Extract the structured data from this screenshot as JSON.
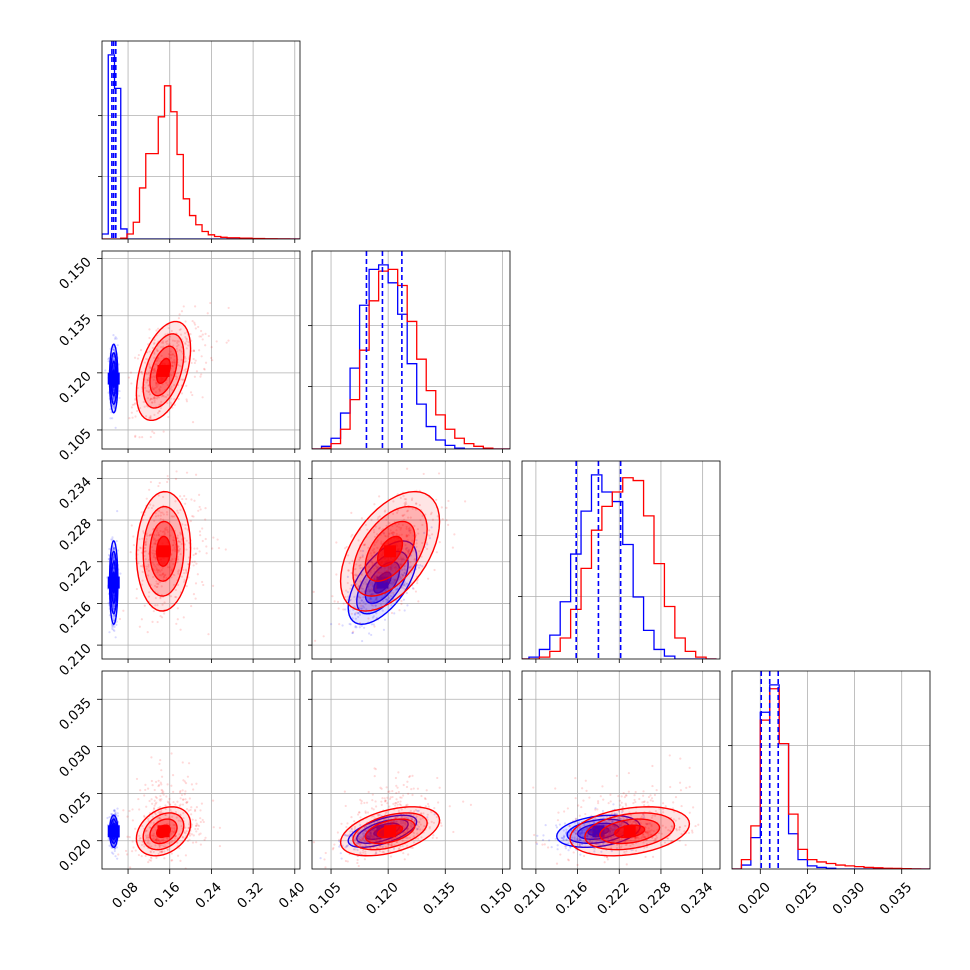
{
  "chart_data": {
    "type": "corner",
    "grid": true,
    "series": [
      {
        "name": "",
        "color": "#0000ff",
        "median": [
          0.0525,
          0.1185,
          0.219,
          0.021
        ],
        "quantile_16": [
          0.049,
          0.1143,
          0.2158,
          0.0201
        ],
        "quantile_84": [
          0.0565,
          0.1236,
          0.2222,
          0.0219
        ],
        "sd": [
          0.004,
          0.0045,
          0.003,
          0.00085
        ],
        "corr": [
          [
            1,
            0,
            0,
            0
          ],
          [
            0,
            1,
            0,
            0
          ],
          [
            0,
            0.6,
            1,
            0
          ],
          [
            0,
            0.6,
            0.3,
            1
          ]
        ]
      },
      {
        "name": "",
        "color": "#ff0000",
        "median": [
          0.148,
          0.1205,
          0.2235,
          0.021
        ],
        "quantile_16": [
          0.128,
          0.114,
          0.219,
          0.0202
        ],
        "quantile_84": [
          0.174,
          0.1265,
          0.228,
          0.0222
        ],
        "sd": [
          0.026,
          0.0065,
          0.0043,
          0.0013
        ],
        "corr": [
          [
            1,
            0,
            0,
            0
          ],
          [
            0.45,
            1,
            0,
            0
          ],
          [
            0.05,
            0.5,
            1,
            0
          ],
          [
            0.3,
            0.45,
            0.3,
            1
          ]
        ]
      }
    ],
    "vertical_lines_color": "#0000ff",
    "axes": [
      {
        "range": [
          0.03,
          0.41
        ],
        "ticks": [
          0.08,
          0.16,
          0.24,
          0.32,
          0.4
        ],
        "tick_labels": [
          "0.08",
          "0.16",
          "0.24",
          "0.32",
          "0.40"
        ]
      },
      {
        "range": [
          0.1,
          0.152
        ],
        "ticks": [
          0.105,
          0.12,
          0.135,
          0.15
        ],
        "tick_labels": [
          "0.105",
          "0.120",
          "0.135",
          "0.150"
        ]
      },
      {
        "range": [
          0.208,
          0.2365
        ],
        "ticks": [
          0.21,
          0.216,
          0.222,
          0.228,
          0.234
        ],
        "tick_labels": [
          "0.210",
          "0.216",
          "0.222",
          "0.228",
          "0.234"
        ]
      },
      {
        "range": [
          0.017,
          0.038
        ],
        "ticks": [
          0.02,
          0.025,
          0.03,
          0.035
        ],
        "tick_labels": [
          "0.020",
          "0.025",
          "0.030",
          "0.035"
        ]
      }
    ],
    "histograms": [
      {
        "bin_edges": [
          0.03,
          0.042,
          0.054,
          0.066,
          0.078,
          0.09,
          0.102,
          0.114,
          0.126,
          0.138,
          0.15,
          0.162,
          0.174,
          0.186,
          0.198,
          0.21,
          0.222,
          0.234,
          0.246,
          0.258,
          0.27,
          0.294,
          0.318,
          0.342,
          0.366,
          0.39,
          0.41
        ],
        "blue": [
          6,
          220,
          180,
          12,
          0,
          0,
          0,
          0,
          0,
          0,
          0,
          0,
          0,
          0,
          0,
          0,
          0,
          0,
          0,
          0,
          0,
          0,
          0,
          0,
          0,
          0
        ],
        "red": [
          0,
          0,
          0,
          1,
          6,
          20,
          61,
          102,
          102,
          146,
          183,
          152,
          101,
          48,
          28,
          17,
          9,
          5,
          3,
          2,
          1.5,
          1,
          0.5,
          0.3,
          0.1,
          0
        ]
      },
      {
        "bin_edges": [
          0.1,
          0.1025,
          0.105,
          0.1075,
          0.11,
          0.1125,
          0.115,
          0.1175,
          0.12,
          0.1225,
          0.125,
          0.1275,
          0.13,
          0.1325,
          0.135,
          0.1375,
          0.14,
          0.1425,
          0.145,
          0.1475,
          0.15,
          0.152
        ],
        "blue": [
          0,
          3,
          12,
          40,
          90,
          160,
          200,
          205,
          185,
          150,
          95,
          50,
          25,
          10,
          4,
          1,
          0,
          0,
          0,
          0,
          0
        ],
        "red": [
          0,
          1,
          6,
          22,
          55,
          110,
          165,
          198,
          200,
          182,
          142,
          100,
          65,
          38,
          22,
          12,
          6,
          3,
          1,
          0,
          0
        ]
      },
      {
        "bin_edges": [
          0.2075,
          0.209,
          0.2105,
          0.212,
          0.2135,
          0.215,
          0.2165,
          0.218,
          0.2195,
          0.221,
          0.2225,
          0.224,
          0.2255,
          0.227,
          0.2285,
          0.23,
          0.2315,
          0.233,
          0.2345,
          0.236
        ],
        "blue": [
          0,
          2,
          10,
          25,
          60,
          110,
          155,
          193,
          175,
          165,
          120,
          65,
          30,
          10,
          3,
          0,
          0,
          0,
          0
        ],
        "red": [
          0,
          0,
          2,
          8,
          22,
          52,
          95,
          135,
          160,
          175,
          190,
          187,
          150,
          100,
          55,
          22,
          8,
          2,
          0
        ]
      },
      {
        "bin_edges": [
          0.017,
          0.018,
          0.019,
          0.02,
          0.021,
          0.022,
          0.023,
          0.024,
          0.025,
          0.026,
          0.027,
          0.028,
          0.029,
          0.03,
          0.031,
          0.032,
          0.033,
          0.034,
          0.035,
          0.036,
          0.037,
          0.038
        ],
        "blue": [
          0,
          5,
          40,
          200,
          235,
          160,
          45,
          12,
          4,
          2,
          1,
          0,
          0,
          0,
          0,
          0,
          0,
          0,
          0,
          0,
          0
        ],
        "red": [
          0,
          12,
          55,
          190,
          230,
          160,
          70,
          25,
          12,
          9,
          7,
          5,
          4,
          3,
          2,
          1.5,
          1,
          0.7,
          0.4,
          0.2,
          0
        ]
      }
    ]
  }
}
